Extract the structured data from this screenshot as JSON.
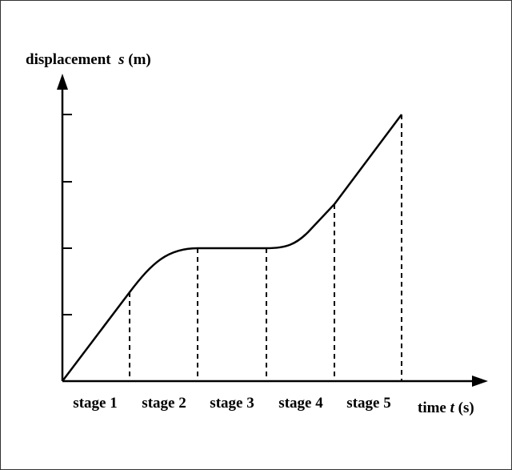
{
  "diagram": {
    "y_axis_label": {
      "prefix": "displacement  ",
      "symbol": "s",
      "unit": " (m)"
    },
    "x_axis_label": {
      "prefix": "time ",
      "symbol": "t",
      "unit": " (s)"
    },
    "stages": [
      "stage 1",
      "stage 2",
      "stage 3",
      "stage 4",
      "stage 5"
    ],
    "colors": {
      "line": "#000000",
      "background": "#ffffff"
    }
  }
}
